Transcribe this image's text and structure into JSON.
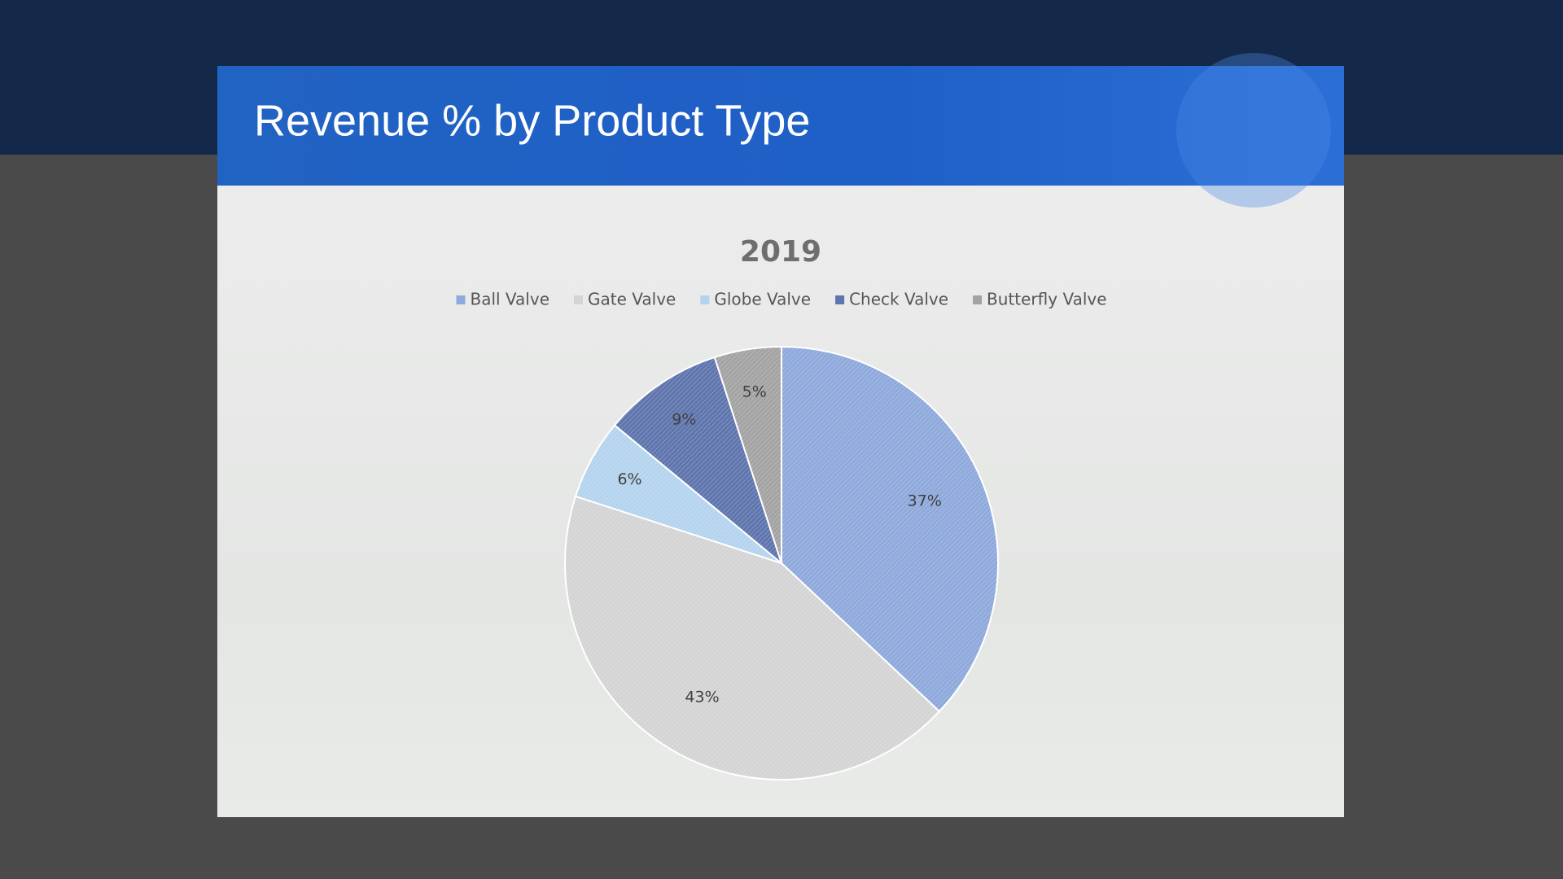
{
  "slide": {
    "title": "Revenue % by Product Type"
  },
  "chart_data": {
    "type": "pie",
    "title": "2019",
    "categories": [
      "Ball Valve",
      "Gate Valve",
      "Globe Valve",
      "Check Valve",
      "Butterfly Valve"
    ],
    "values": [
      37,
      43,
      6,
      9,
      5
    ],
    "value_labels": [
      "37%",
      "43%",
      "6%",
      "9%",
      "5%"
    ],
    "colors": [
      "#8ea9db",
      "#d4d4d4",
      "#b4d3ee",
      "#5f75ad",
      "#a3a3a3"
    ],
    "legend": "top"
  }
}
